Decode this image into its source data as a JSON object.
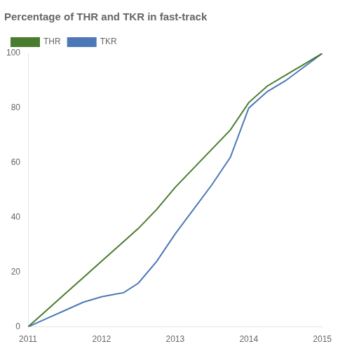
{
  "chart_data": {
    "type": "line",
    "title": "Percentage of THR and TKR in fast-track",
    "xlim": [
      2011,
      2015
    ],
    "xticks": [
      2011,
      2012,
      2013,
      2014,
      2015
    ],
    "ylim": [
      0,
      100
    ],
    "yticks": [
      0,
      20,
      40,
      60,
      80,
      100
    ],
    "grid": false,
    "legend": "upper left",
    "series": [
      {
        "name": "THR",
        "color": "#4a7c2f",
        "x": [
          2011.0,
          2011.25,
          2011.5,
          2011.75,
          2012.0,
          2012.25,
          2012.5,
          2012.75,
          2013.0,
          2013.25,
          2013.5,
          2013.75,
          2014.0,
          2014.25,
          2014.5,
          2014.75,
          2015.0
        ],
        "values": [
          0,
          6,
          12,
          18,
          24,
          30,
          36,
          43,
          51,
          58,
          65,
          72,
          82,
          88,
          92,
          96,
          100
        ]
      },
      {
        "name": "TKR",
        "color": "#4d78b8",
        "x": [
          2011.0,
          2011.25,
          2011.5,
          2011.75,
          2012.0,
          2012.1,
          2012.2,
          2012.3,
          2012.5,
          2012.75,
          2013.0,
          2013.25,
          2013.5,
          2013.75,
          2014.0,
          2014.25,
          2014.5,
          2014.75,
          2015.0
        ],
        "values": [
          0,
          3,
          6,
          9,
          11,
          11.5,
          12,
          12.5,
          16,
          24,
          34,
          43,
          52,
          62,
          80,
          86,
          90,
          95,
          100
        ]
      }
    ]
  }
}
